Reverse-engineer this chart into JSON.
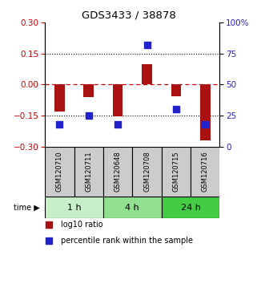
{
  "title": "GDS3433 / 38878",
  "samples": [
    "GSM120710",
    "GSM120711",
    "GSM120648",
    "GSM120708",
    "GSM120715",
    "GSM120716"
  ],
  "log10_ratio": [
    -0.13,
    -0.06,
    -0.155,
    0.1,
    -0.055,
    -0.27
  ],
  "percentile_rank": [
    18,
    25,
    18,
    82,
    30,
    18
  ],
  "groups": [
    {
      "label": "1 h",
      "span": [
        0,
        2
      ],
      "color": "#c8f0c8"
    },
    {
      "label": "4 h",
      "span": [
        2,
        4
      ],
      "color": "#90e090"
    },
    {
      "label": "24 h",
      "span": [
        4,
        6
      ],
      "color": "#44cc44"
    }
  ],
  "bar_color": "#aa1111",
  "dot_color": "#2222cc",
  "zero_line_color": "#cc0000",
  "ylim_left": [
    -0.3,
    0.3
  ],
  "ylim_right": [
    0,
    100
  ],
  "yticks_left": [
    -0.3,
    -0.15,
    0,
    0.15,
    0.3
  ],
  "yticks_right": [
    0,
    25,
    50,
    75,
    100
  ],
  "ytick_labels_right": [
    "0",
    "25",
    "50",
    "75",
    "100%"
  ],
  "hline_values": [
    -0.15,
    0.15
  ],
  "bar_width": 0.35,
  "dot_size": 40,
  "background_color": "#ffffff",
  "sample_box_color": "#cccccc",
  "legend_entries": [
    "log10 ratio",
    "percentile rank within the sample"
  ]
}
